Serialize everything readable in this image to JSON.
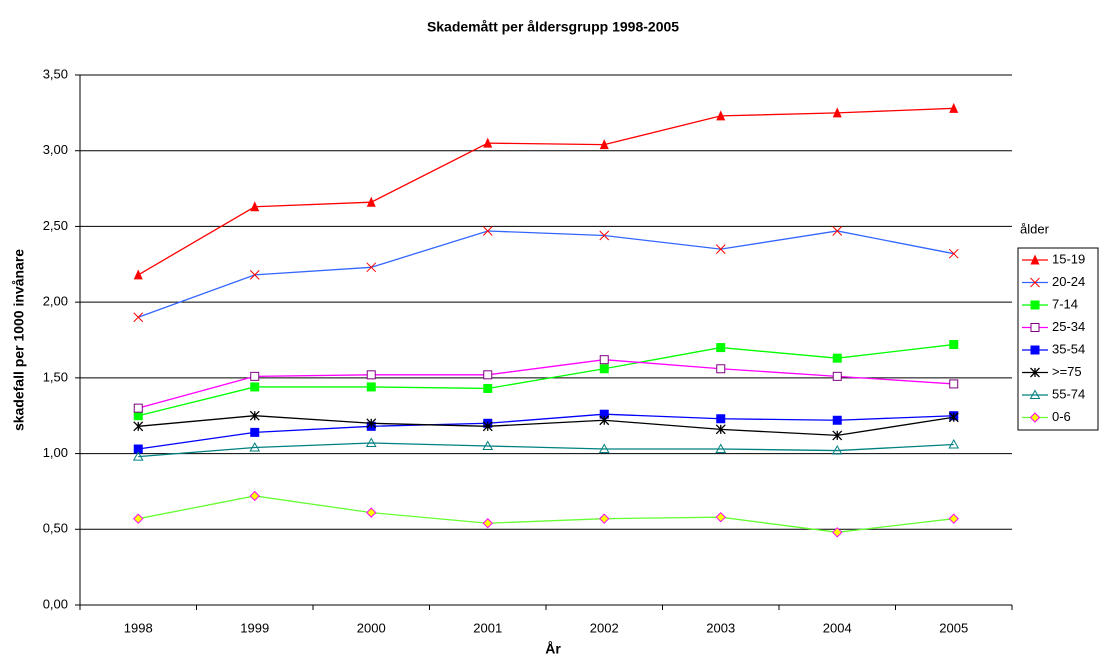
{
  "chart_data": {
    "type": "line",
    "title": "Skademått per åldersgrupp 1998-2005",
    "x_label": "År",
    "y_label": "skadefall per 1000 invånare",
    "legend_title": "ålder",
    "legend_position": "right",
    "grid": true,
    "categories": [
      "1998",
      "1999",
      "2000",
      "2001",
      "2002",
      "2003",
      "2004",
      "2005"
    ],
    "ylim": [
      0,
      3.5
    ],
    "yticks": [
      {
        "value": 0,
        "label": "0,00"
      },
      {
        "value": 0.5,
        "label": "0,50"
      },
      {
        "value": 1,
        "label": "1,00"
      },
      {
        "value": 1.5,
        "label": "1,50"
      },
      {
        "value": 2,
        "label": "2,00"
      },
      {
        "value": 2.5,
        "label": "2,50"
      },
      {
        "value": 3,
        "label": "3,00"
      },
      {
        "value": 3.5,
        "label": "3,50"
      }
    ],
    "series": [
      {
        "name": "15-19",
        "color": "#ff0000",
        "marker": "triangle-filled",
        "marker_color": "#ff0000",
        "values": [
          2.18,
          2.63,
          2.66,
          3.05,
          3.04,
          3.23,
          3.25,
          3.28
        ]
      },
      {
        "name": "20-24",
        "color": "#3366ff",
        "marker": "x",
        "marker_color": "#ff0000",
        "values": [
          1.9,
          2.18,
          2.23,
          2.47,
          2.44,
          2.35,
          2.47,
          2.32
        ]
      },
      {
        "name": "7-14",
        "color": "#00ff00",
        "marker": "square-filled",
        "marker_color": "#00ff00",
        "values": [
          1.25,
          1.44,
          1.44,
          1.43,
          1.56,
          1.7,
          1.63,
          1.72
        ]
      },
      {
        "name": "25-34",
        "color": "#ff00ff",
        "marker": "square-open",
        "marker_color": "#800080",
        "values": [
          1.3,
          1.51,
          1.52,
          1.52,
          1.62,
          1.56,
          1.51,
          1.46
        ]
      },
      {
        "name": "35-54",
        "color": "#0000ff",
        "marker": "square-filled",
        "marker_color": "#0000ff",
        "values": [
          1.03,
          1.14,
          1.18,
          1.2,
          1.26,
          1.23,
          1.22,
          1.25
        ]
      },
      {
        "name": ">=75",
        "color": "#000000",
        "marker": "asterisk",
        "marker_color": "#000000",
        "values": [
          1.18,
          1.25,
          1.2,
          1.18,
          1.22,
          1.16,
          1.12,
          1.24
        ]
      },
      {
        "name": "55-74",
        "color": "#008080",
        "marker": "triangle-open",
        "marker_color": "#008080",
        "values": [
          0.98,
          1.04,
          1.07,
          1.05,
          1.03,
          1.03,
          1.02,
          1.06
        ]
      },
      {
        "name": "0-6",
        "color": "#66ff33",
        "marker": "diamond",
        "marker_color": "#ff00ff",
        "marker_fill": "#ffff00",
        "values": [
          0.57,
          0.72,
          0.61,
          0.54,
          0.57,
          0.58,
          0.48,
          0.57
        ]
      }
    ]
  }
}
